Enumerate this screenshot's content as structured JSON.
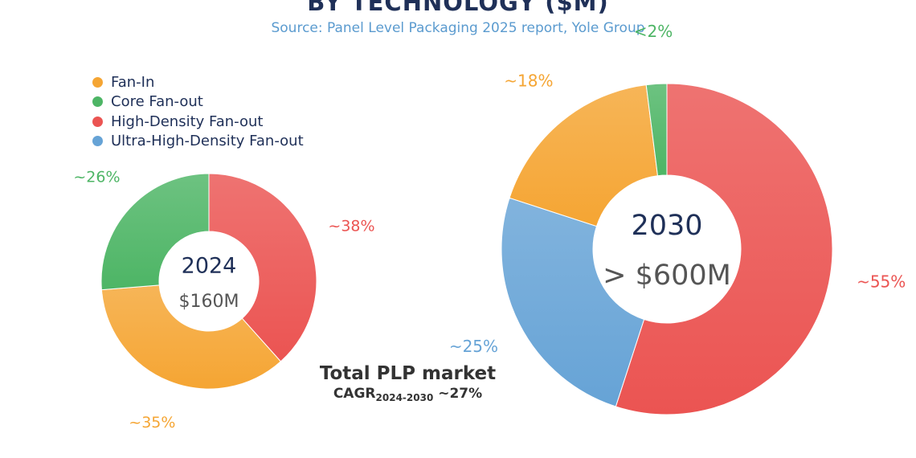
{
  "title": "BY TECHNOLOGY ($M)",
  "subtitle": "Source: Panel Level Packaging 2025 report, Yole Group",
  "colors": {
    "fan_in": "#f5a533",
    "core_fan_out": "#4db565",
    "high_density_fan_out": "#eb5452",
    "ultra_high_density_fan_out": "#66a3d6",
    "title": "#1f3058",
    "subtitle": "#5b9bcf"
  },
  "legend": [
    {
      "label": "Fan-In",
      "color_key": "fan_in"
    },
    {
      "label": "Core Fan-out",
      "color_key": "core_fan_out"
    },
    {
      "label": "High-Density Fan-out",
      "color_key": "high_density_fan_out"
    },
    {
      "label": "Ultra-High-Density Fan-out",
      "color_key": "ultra_high_density_fan_out"
    }
  ],
  "market_note": {
    "title": "Total PLP market",
    "cagr_label": "CAGR",
    "cagr_sub": "2024-2030",
    "cagr_value": "~27%"
  },
  "chart_data": [
    {
      "type": "pie",
      "variant": "donut",
      "title": "2024",
      "center_label": "2024",
      "center_value": "$160M",
      "start": "top, clockwise",
      "slices": [
        {
          "name": "High-Density Fan-out",
          "value": 38,
          "label": "~38%",
          "color_key": "high_density_fan_out"
        },
        {
          "name": "Fan-In",
          "value": 35,
          "label": "~35%",
          "color_key": "fan_in"
        },
        {
          "name": "Core Fan-out",
          "value": 26,
          "label": "~26%",
          "color_key": "core_fan_out"
        }
      ]
    },
    {
      "type": "pie",
      "variant": "donut",
      "title": "2030",
      "center_label": "2030",
      "center_value": "> $600M",
      "start": "top, clockwise",
      "slices": [
        {
          "name": "High-Density Fan-out",
          "value": 55,
          "label": "~55%",
          "color_key": "high_density_fan_out"
        },
        {
          "name": "Ultra-High-Density Fan-out",
          "value": 25,
          "label": "~25%",
          "color_key": "ultra_high_density_fan_out"
        },
        {
          "name": "Fan-In",
          "value": 18,
          "label": "~18%",
          "color_key": "fan_in"
        },
        {
          "name": "Core Fan-out",
          "value": 2,
          "label": "<2%",
          "color_key": "core_fan_out"
        }
      ]
    }
  ]
}
